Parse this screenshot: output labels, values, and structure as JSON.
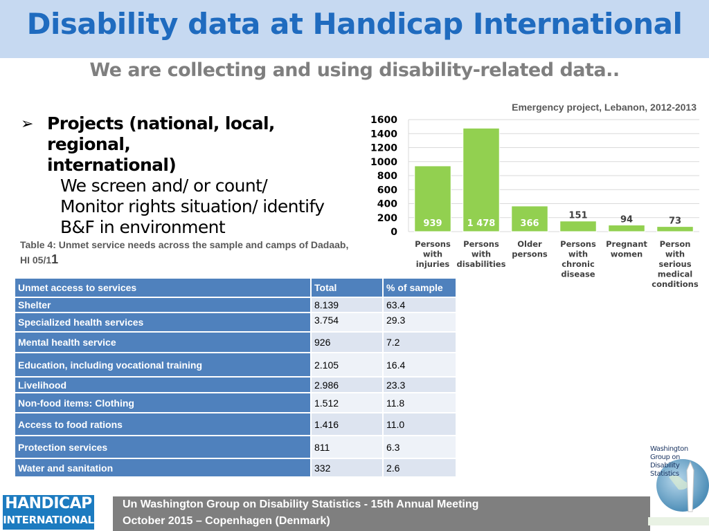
{
  "slide": {
    "title": "Disability data at Handicap International",
    "subtitle": "We are collecting and using disability-related data..",
    "bullet": {
      "heading_line1": "Projects (national, local, regional,",
      "heading_line2": "international)",
      "lines": [
        "We screen and/ or count/",
        "Monitor rights situation/ identify",
        "B&F in environment"
      ]
    },
    "table_caption": {
      "text": "Table 4: Unmet service needs across the sample and camps of Dadaab, HI 05/1",
      "suffix": "1"
    }
  },
  "table": {
    "headers": [
      "Unmet access to services",
      "Total",
      "% of sample"
    ],
    "rows": [
      [
        "Shelter",
        "8.139",
        "63.4"
      ],
      [
        "Specialized health services",
        "3.754",
        "29.3"
      ],
      [
        "Mental health service",
        "926",
        "7.2"
      ],
      [
        "Education, including vocational training",
        "2.105",
        "16.4"
      ],
      [
        "Livelihood",
        "2.986",
        "23.3"
      ],
      [
        "Non-food items: Clothing",
        "1.512",
        "11.8"
      ],
      [
        "Access to food rations",
        "1.416",
        "11.0"
      ],
      [
        "Protection services",
        "811",
        "6.3"
      ],
      [
        "Water and sanitation",
        "332",
        "2.6"
      ]
    ]
  },
  "chart_data": {
    "type": "bar",
    "title": "Emergency project, Lebanon, 2012-2013",
    "categories": [
      "Persons with injuries",
      "Persons with disabilities",
      "Older persons",
      "Persons with chronic disease",
      "Pregnant women",
      "Person with serious medical conditions"
    ],
    "category_lines": [
      [
        "Persons",
        "with",
        "injuries"
      ],
      [
        "Persons",
        "with",
        "disabilities"
      ],
      [
        "Older",
        "persons"
      ],
      [
        "Persons",
        "with",
        "chronic",
        "disease"
      ],
      [
        "Pregnant",
        "women"
      ],
      [
        "Person",
        "with",
        "serious",
        "medical",
        "conditions"
      ]
    ],
    "values": [
      939,
      1478,
      366,
      151,
      94,
      73
    ],
    "data_labels": [
      "939",
      "1 478",
      "366",
      "151",
      "94",
      "73"
    ],
    "yticks": [
      0,
      200,
      400,
      600,
      800,
      1000,
      1200,
      1400,
      1600
    ],
    "ylim": [
      0,
      1600
    ],
    "xlabel": "",
    "ylabel": "",
    "grid": true,
    "bar_color": "#92d050"
  },
  "footer": {
    "line1": "Un Washington Group on Disability Statistics - 15th Annual Meeting",
    "line2": "October 2015 – Copenhagen (Denmark)"
  },
  "logos": {
    "handicap_line1": "HANDICAP",
    "handicap_line2": "INTERNATIONAL",
    "wg_lines": [
      "Washington",
      "Group on",
      "Disability",
      "Statistics"
    ]
  },
  "colors": {
    "title": "#1f6bbf",
    "title_band": "#c6d9f1",
    "table_header": "#4f81bd",
    "table_cell": "#dde4f0",
    "footer": "#7f7f7f",
    "logo_blue": "#1c7bc0"
  }
}
